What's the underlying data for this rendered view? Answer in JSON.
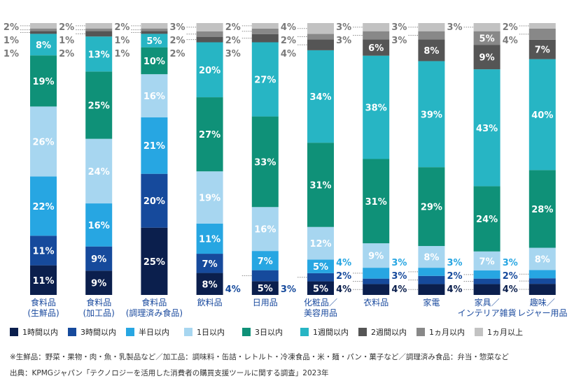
{
  "chart_data": {
    "type": "bar",
    "stacked": true,
    "categories": [
      "食料品\n(生鮮品)",
      "食料品\n(加工品)",
      "食料品\n(調理済み食品)",
      "飲料品",
      "日用品",
      "化粧品／\n美容用品",
      "衣料品",
      "家電",
      "家具／\nインテリア雑貨",
      "趣味／\nレジャー用品"
    ],
    "series": [
      {
        "name": "1時間以内",
        "color": "#0b1f4d",
        "values": [
          11,
          9,
          25,
          8,
          5,
          5,
          4,
          4,
          4,
          4
        ]
      },
      {
        "name": "3時間以内",
        "color": "#164a9c",
        "values": [
          11,
          9,
          20,
          7,
          4,
          3,
          2,
          3,
          2,
          2
        ]
      },
      {
        "name": "半日以内",
        "color": "#27a6e2",
        "values": [
          22,
          16,
          21,
          11,
          7,
          5,
          4,
          3,
          3,
          3
        ]
      },
      {
        "name": "1日以内",
        "color": "#a7d6f0",
        "values": [
          26,
          24,
          16,
          19,
          16,
          12,
          9,
          8,
          7,
          8
        ]
      },
      {
        "name": "3日以内",
        "color": "#0f9178",
        "values": [
          19,
          25,
          10,
          27,
          33,
          31,
          31,
          29,
          24,
          28
        ]
      },
      {
        "name": "1週間以内",
        "color": "#27b5c4",
        "values": [
          8,
          13,
          5,
          20,
          27,
          34,
          38,
          39,
          43,
          40
        ]
      },
      {
        "name": "2週間以内",
        "color": "#555555",
        "values": [
          1,
          2,
          1,
          2,
          3,
          4,
          6,
          8,
          9,
          7
        ]
      },
      {
        "name": "1ヵ月以内",
        "color": "#888888",
        "values": [
          1,
          1,
          1,
          2,
          2,
          2,
          3,
          3,
          5,
          4
        ]
      },
      {
        "name": "1ヵ月以上",
        "color": "#c2c2c2",
        "values": [
          2,
          2,
          2,
          3,
          2,
          4,
          3,
          3,
          3,
          2
        ]
      }
    ],
    "value_suffix": "%",
    "ylim": [
      0,
      100
    ],
    "grid": false,
    "legend_position": "bottom"
  },
  "notes": {
    "footnote": "※生鮮品：野菜・果物・肉・魚・乳製品など／加工品：調味料・缶詰・レトルト・冷凍食品・米・麺・パン・菓子など／調理済み食品：弁当・惣菜など",
    "source": "出典：KPMGジャパン「テクノロジーを活用した消費者の購買支援ツールに関する調査」2023年"
  }
}
